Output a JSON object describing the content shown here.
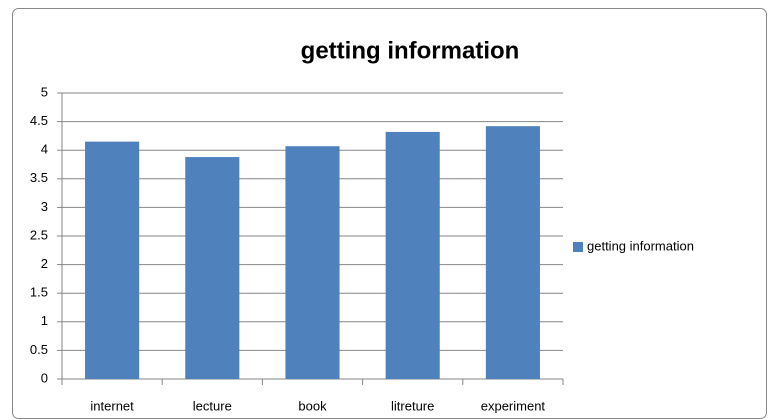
{
  "chart_data": {
    "type": "bar",
    "title": "getting information",
    "categories": [
      "internet",
      "lecture",
      "book",
      "litreture",
      "experiment"
    ],
    "series": [
      {
        "name": "getting information",
        "color": "#4f81bd",
        "values": [
          4.15,
          3.88,
          4.07,
          4.32,
          4.42
        ]
      }
    ],
    "ylim": [
      0,
      5
    ],
    "yticks": [
      0,
      0.5,
      1,
      1.5,
      2,
      2.5,
      3,
      3.5,
      4,
      4.5,
      5
    ],
    "grid": true,
    "legend": "right"
  }
}
